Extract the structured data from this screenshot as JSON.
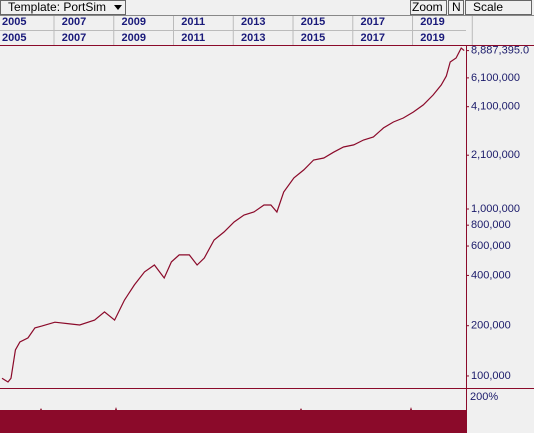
{
  "chart_data": {
    "type": "line",
    "toolbar": {
      "template": "Template: PortSim",
      "zoom": "Zoom",
      "n": "N",
      "scale": "Scale"
    },
    "lower_panel_label": "200%",
    "color": "#8b0a2a",
    "log_scale": true,
    "x": [
      2005.0,
      2005.2,
      2005.3,
      2005.45,
      2005.6,
      2005.87,
      2006.1,
      2006.33,
      2006.77,
      2007.27,
      2007.6,
      2008.1,
      2008.43,
      2008.77,
      2009.1,
      2009.43,
      2009.77,
      2010.1,
      2010.43,
      2010.67,
      2010.93,
      2011.27,
      2011.53,
      2011.77,
      2012.1,
      2012.43,
      2012.77,
      2013.1,
      2013.43,
      2013.77,
      2014.0,
      2014.2,
      2014.43,
      2014.77,
      2015.1,
      2015.43,
      2015.77,
      2016.1,
      2016.43,
      2016.77,
      2017.1,
      2017.43,
      2017.77,
      2018.1,
      2018.43,
      2018.77,
      2019.1,
      2019.43,
      2019.7,
      2019.87,
      2020.0,
      2020.2,
      2020.37,
      2020.47
    ],
    "values": [
      97000,
      92000,
      97000,
      143000,
      160000,
      169000,
      194000,
      199000,
      210000,
      205000,
      202000,
      216000,
      242000,
      216000,
      285000,
      351000,
      420000,
      462000,
      386000,
      482000,
      531000,
      531000,
      462000,
      509000,
      652000,
      728000,
      836000,
      920000,
      960000,
      1057000,
      1057000,
      960000,
      1265000,
      1535000,
      1714000,
      1965000,
      2020000,
      2190000,
      2350000,
      2420000,
      2590000,
      2700000,
      3060000,
      3320000,
      3510000,
      3810000,
      4200000,
      4820000,
      5530000,
      6250000,
      7590000,
      8020000,
      9200000,
      8887395
    ],
    "last_value": {
      "value": 8887395,
      "label": "8,887,395.0"
    },
    "xlim": [
      2005,
      2020.53
    ],
    "xticks": [
      2005,
      2007,
      2009,
      2011,
      2013,
      2015,
      2017,
      2019
    ],
    "ylim": [
      84700,
      9600000
    ],
    "yticks": [
      {
        "value": 100000,
        "label": "100,000"
      },
      {
        "value": 200000,
        "label": "200,000"
      },
      {
        "value": 400000,
        "label": "400,000"
      },
      {
        "value": 600000,
        "label": "600,000"
      },
      {
        "value": 800000,
        "label": "800,000"
      },
      {
        "value": 1000000,
        "label": "1,000,000"
      },
      {
        "value": 2100000,
        "label": "2,100,000"
      },
      {
        "value": 4100000,
        "label": "4,100,000"
      },
      {
        "value": 6100000,
        "label": "6,100,000"
      }
    ]
  }
}
